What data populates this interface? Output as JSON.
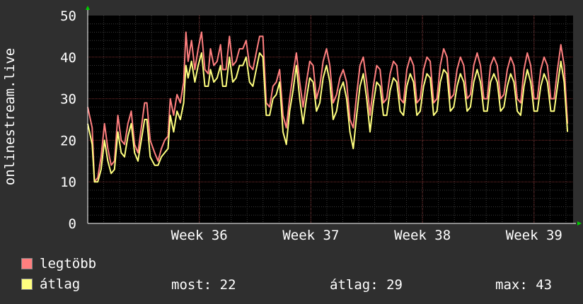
{
  "chart_data": {
    "type": "line",
    "ylabel": "onlinestream.live",
    "ylim": [
      0,
      50
    ],
    "y_ticks": [
      "0",
      "10",
      "20",
      "30",
      "40",
      "50"
    ],
    "x_ticks": [
      "Week 36",
      "Week 37",
      "Week 38",
      "Week 39"
    ],
    "x_tick_positions_weeks": [
      36,
      37,
      38,
      39
    ],
    "xlim_weeks": [
      35.0,
      39.35
    ],
    "grid": true,
    "series": [
      {
        "name": "legtöbb",
        "color": "#ff7f7f",
        "points": [
          [
            35.0,
            28
          ],
          [
            35.04,
            23
          ],
          [
            35.06,
            10
          ],
          [
            35.09,
            11
          ],
          [
            35.12,
            16
          ],
          [
            35.15,
            24
          ],
          [
            35.18,
            18
          ],
          [
            35.21,
            14
          ],
          [
            35.24,
            15
          ],
          [
            35.27,
            26
          ],
          [
            35.3,
            20
          ],
          [
            35.33,
            19
          ],
          [
            35.36,
            24
          ],
          [
            35.39,
            27
          ],
          [
            35.42,
            19
          ],
          [
            35.45,
            17
          ],
          [
            35.48,
            23
          ],
          [
            35.51,
            29
          ],
          [
            35.53,
            29
          ],
          [
            35.56,
            20
          ],
          [
            35.6,
            17
          ],
          [
            35.63,
            15
          ],
          [
            35.66,
            18
          ],
          [
            35.69,
            20
          ],
          [
            35.72,
            21
          ],
          [
            35.74,
            30
          ],
          [
            35.77,
            26
          ],
          [
            35.8,
            31
          ],
          [
            35.83,
            29
          ],
          [
            35.86,
            34
          ],
          [
            35.88,
            46
          ],
          [
            35.9,
            39
          ],
          [
            35.93,
            44
          ],
          [
            35.96,
            37
          ],
          [
            35.99,
            42
          ],
          [
            36.02,
            46
          ],
          [
            36.05,
            37
          ],
          [
            36.08,
            36
          ],
          [
            36.1,
            42
          ],
          [
            36.13,
            38
          ],
          [
            36.16,
            39
          ],
          [
            36.19,
            43
          ],
          [
            36.21,
            37
          ],
          [
            36.24,
            37
          ],
          [
            36.27,
            45
          ],
          [
            36.3,
            38
          ],
          [
            36.33,
            39
          ],
          [
            36.36,
            42
          ],
          [
            36.39,
            42
          ],
          [
            36.42,
            44
          ],
          [
            36.45,
            38
          ],
          [
            36.48,
            37
          ],
          [
            36.51,
            41
          ],
          [
            36.54,
            45
          ],
          [
            36.57,
            45
          ],
          [
            36.6,
            29
          ],
          [
            36.63,
            28
          ],
          [
            36.66,
            33
          ],
          [
            36.69,
            34
          ],
          [
            36.72,
            37
          ],
          [
            36.75,
            26
          ],
          [
            36.78,
            23
          ],
          [
            36.81,
            30
          ],
          [
            36.84,
            36
          ],
          [
            36.87,
            41
          ],
          [
            36.9,
            34
          ],
          [
            36.93,
            28
          ],
          [
            36.96,
            34
          ],
          [
            36.99,
            39
          ],
          [
            37.02,
            38
          ],
          [
            37.05,
            30
          ],
          [
            37.08,
            33
          ],
          [
            37.11,
            39
          ],
          [
            37.14,
            42
          ],
          [
            37.17,
            38
          ],
          [
            37.2,
            29
          ],
          [
            37.23,
            31
          ],
          [
            37.26,
            35
          ],
          [
            37.29,
            37
          ],
          [
            37.32,
            34
          ],
          [
            37.35,
            25
          ],
          [
            37.38,
            23
          ],
          [
            37.41,
            31
          ],
          [
            37.44,
            38
          ],
          [
            37.47,
            40
          ],
          [
            37.5,
            34
          ],
          [
            37.53,
            26
          ],
          [
            37.56,
            33
          ],
          [
            37.59,
            38
          ],
          [
            37.62,
            37
          ],
          [
            37.65,
            29
          ],
          [
            37.68,
            30
          ],
          [
            37.71,
            36
          ],
          [
            37.74,
            39
          ],
          [
            37.77,
            38
          ],
          [
            37.8,
            30
          ],
          [
            37.83,
            29
          ],
          [
            37.86,
            37
          ],
          [
            37.89,
            40
          ],
          [
            37.92,
            38
          ],
          [
            37.95,
            29
          ],
          [
            37.98,
            30
          ],
          [
            38.01,
            37
          ],
          [
            38.04,
            40
          ],
          [
            38.07,
            39
          ],
          [
            38.1,
            29
          ],
          [
            38.13,
            30
          ],
          [
            38.16,
            38
          ],
          [
            38.19,
            42
          ],
          [
            38.22,
            40
          ],
          [
            38.25,
            30
          ],
          [
            38.28,
            31
          ],
          [
            38.31,
            37
          ],
          [
            38.34,
            40
          ],
          [
            38.37,
            38
          ],
          [
            38.4,
            30
          ],
          [
            38.43,
            31
          ],
          [
            38.46,
            38
          ],
          [
            38.49,
            41
          ],
          [
            38.52,
            38
          ],
          [
            38.55,
            30
          ],
          [
            38.58,
            30
          ],
          [
            38.61,
            38
          ],
          [
            38.64,
            40
          ],
          [
            38.67,
            38
          ],
          [
            38.7,
            30
          ],
          [
            38.73,
            31
          ],
          [
            38.76,
            37
          ],
          [
            38.79,
            40
          ],
          [
            38.82,
            38
          ],
          [
            38.85,
            30
          ],
          [
            38.88,
            29
          ],
          [
            38.91,
            37
          ],
          [
            38.94,
            41
          ],
          [
            38.97,
            38
          ],
          [
            39.0,
            30
          ],
          [
            39.03,
            30
          ],
          [
            39.06,
            37
          ],
          [
            39.09,
            40
          ],
          [
            39.12,
            38
          ],
          [
            39.15,
            30
          ],
          [
            39.18,
            30
          ],
          [
            39.21,
            37
          ],
          [
            39.24,
            43
          ],
          [
            39.27,
            38
          ],
          [
            39.3,
            24
          ]
        ]
      },
      {
        "name": "átlag",
        "color": "#ffff7f",
        "points": [
          [
            35.0,
            24
          ],
          [
            35.04,
            19
          ],
          [
            35.06,
            10
          ],
          [
            35.09,
            10
          ],
          [
            35.12,
            13
          ],
          [
            35.15,
            20
          ],
          [
            35.18,
            15
          ],
          [
            35.21,
            12
          ],
          [
            35.24,
            13
          ],
          [
            35.27,
            22
          ],
          [
            35.3,
            17
          ],
          [
            35.33,
            16
          ],
          [
            35.36,
            21
          ],
          [
            35.39,
            24
          ],
          [
            35.42,
            17
          ],
          [
            35.45,
            15
          ],
          [
            35.48,
            20
          ],
          [
            35.51,
            25
          ],
          [
            35.53,
            25
          ],
          [
            35.56,
            16
          ],
          [
            35.6,
            14
          ],
          [
            35.63,
            14
          ],
          [
            35.66,
            16
          ],
          [
            35.69,
            17
          ],
          [
            35.72,
            18
          ],
          [
            35.74,
            26
          ],
          [
            35.77,
            22
          ],
          [
            35.8,
            27
          ],
          [
            35.83,
            25
          ],
          [
            35.86,
            29
          ],
          [
            35.88,
            38
          ],
          [
            35.9,
            35
          ],
          [
            35.93,
            39
          ],
          [
            35.96,
            34
          ],
          [
            35.99,
            38
          ],
          [
            36.02,
            41
          ],
          [
            36.05,
            33
          ],
          [
            36.08,
            33
          ],
          [
            36.1,
            37
          ],
          [
            36.13,
            34
          ],
          [
            36.16,
            35
          ],
          [
            36.19,
            38
          ],
          [
            36.21,
            33
          ],
          [
            36.24,
            33
          ],
          [
            36.27,
            40
          ],
          [
            36.3,
            34
          ],
          [
            36.33,
            35
          ],
          [
            36.36,
            38
          ],
          [
            36.39,
            38
          ],
          [
            36.42,
            40
          ],
          [
            36.45,
            34
          ],
          [
            36.48,
            33
          ],
          [
            36.51,
            37
          ],
          [
            36.54,
            41
          ],
          [
            36.57,
            40
          ],
          [
            36.6,
            26
          ],
          [
            36.63,
            26
          ],
          [
            36.66,
            30
          ],
          [
            36.69,
            31
          ],
          [
            36.72,
            34
          ],
          [
            36.75,
            22
          ],
          [
            36.78,
            19
          ],
          [
            36.81,
            27
          ],
          [
            36.84,
            32
          ],
          [
            36.87,
            38
          ],
          [
            36.9,
            30
          ],
          [
            36.93,
            24
          ],
          [
            36.96,
            30
          ],
          [
            36.99,
            35
          ],
          [
            37.02,
            34
          ],
          [
            37.05,
            27
          ],
          [
            37.08,
            29
          ],
          [
            37.11,
            35
          ],
          [
            37.14,
            38
          ],
          [
            37.17,
            34
          ],
          [
            37.2,
            25
          ],
          [
            37.23,
            27
          ],
          [
            37.26,
            32
          ],
          [
            37.29,
            34
          ],
          [
            37.32,
            30
          ],
          [
            37.35,
            22
          ],
          [
            37.38,
            18
          ],
          [
            37.41,
            26
          ],
          [
            37.44,
            33
          ],
          [
            37.47,
            36
          ],
          [
            37.5,
            30
          ],
          [
            37.53,
            22
          ],
          [
            37.56,
            29
          ],
          [
            37.59,
            34
          ],
          [
            37.62,
            33
          ],
          [
            37.65,
            26
          ],
          [
            37.68,
            26
          ],
          [
            37.71,
            32
          ],
          [
            37.74,
            35
          ],
          [
            37.77,
            34
          ],
          [
            37.8,
            27
          ],
          [
            37.83,
            26
          ],
          [
            37.86,
            33
          ],
          [
            37.89,
            36
          ],
          [
            37.92,
            34
          ],
          [
            37.95,
            26
          ],
          [
            37.98,
            27
          ],
          [
            38.01,
            33
          ],
          [
            38.04,
            36
          ],
          [
            38.07,
            35
          ],
          [
            38.1,
            26
          ],
          [
            38.13,
            27
          ],
          [
            38.16,
            34
          ],
          [
            38.19,
            37
          ],
          [
            38.22,
            36
          ],
          [
            38.25,
            27
          ],
          [
            38.28,
            28
          ],
          [
            38.31,
            33
          ],
          [
            38.34,
            36
          ],
          [
            38.37,
            34
          ],
          [
            38.4,
            27
          ],
          [
            38.43,
            28
          ],
          [
            38.46,
            34
          ],
          [
            38.49,
            37
          ],
          [
            38.52,
            34
          ],
          [
            38.55,
            27
          ],
          [
            38.58,
            27
          ],
          [
            38.61,
            34
          ],
          [
            38.64,
            36
          ],
          [
            38.67,
            34
          ],
          [
            38.7,
            27
          ],
          [
            38.73,
            28
          ],
          [
            38.76,
            33
          ],
          [
            38.79,
            36
          ],
          [
            38.82,
            34
          ],
          [
            38.85,
            27
          ],
          [
            38.88,
            26
          ],
          [
            38.91,
            33
          ],
          [
            38.94,
            37
          ],
          [
            38.97,
            34
          ],
          [
            39.0,
            27
          ],
          [
            39.03,
            27
          ],
          [
            39.06,
            33
          ],
          [
            39.09,
            36
          ],
          [
            39.12,
            34
          ],
          [
            39.15,
            27
          ],
          [
            39.18,
            27
          ],
          [
            39.21,
            33
          ],
          [
            39.24,
            39
          ],
          [
            39.27,
            34
          ],
          [
            39.3,
            22
          ]
        ]
      }
    ]
  },
  "legend": {
    "items": [
      {
        "label": "legtöbb",
        "color": "#ff7f7f"
      },
      {
        "label": "átlag",
        "color": "#ffff7f"
      }
    ],
    "stats": {
      "now": "most: 22",
      "avg": "átlag: 29",
      "max": "max: 43"
    }
  },
  "colors": {
    "background": "#2f2f2f",
    "plot_background": "#000000",
    "grid_major": "#7a2d2d",
    "grid_minor": "#3a3a3a",
    "axis": "#ffffff",
    "arrow": "#00cc00"
  }
}
